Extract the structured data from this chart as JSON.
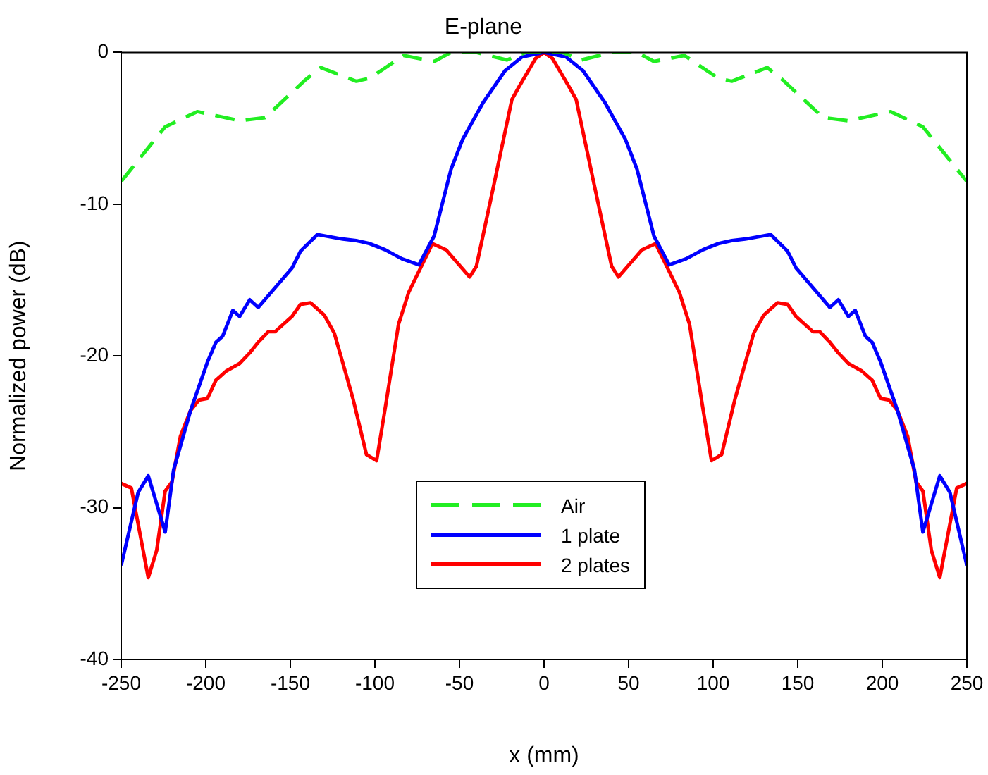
{
  "chart_data": {
    "type": "line",
    "title": "E-plane",
    "xlabel": "x (mm)",
    "ylabel": "Normalized power (dB)",
    "xlim": [
      -250,
      250
    ],
    "xticks": [
      -250,
      -200,
      -150,
      -100,
      -50,
      0,
      50,
      100,
      150,
      200,
      250
    ],
    "ylim": [
      -40,
      0
    ],
    "yticks": [
      -40,
      -30,
      -20,
      -10,
      0
    ],
    "grid": false,
    "legend": "bottom",
    "marker": "none",
    "series": [
      {
        "name": "Air",
        "color": "#22ee22",
        "line_style": "dashed",
        "x": [
          -250,
          -224,
          -205,
          -180,
          -165,
          -141,
          -132,
          -111,
          -103,
          -83,
          -65,
          -55,
          -40,
          -22,
          -11,
          0,
          11,
          22,
          40,
          55,
          65,
          83,
          103,
          111,
          132,
          141,
          165,
          180,
          205,
          224,
          250
        ],
        "values": [
          -8.5,
          -4.9,
          -3.9,
          -4.5,
          -4.3,
          -1.8,
          -1.0,
          -1.9,
          -1.7,
          -0.2,
          -0.6,
          0,
          0,
          -0.5,
          0,
          0,
          0,
          -0.5,
          0,
          0,
          -0.6,
          -0.2,
          -1.7,
          -1.9,
          -1.0,
          -1.8,
          -4.3,
          -4.5,
          -3.9,
          -4.9,
          -8.5
        ]
      },
      {
        "name": "1 plate",
        "color": "#0000ff",
        "line_style": "solid",
        "x": [
          -250,
          -240,
          -234,
          -224,
          -219,
          -209,
          -199,
          -194,
          -190,
          -184,
          -180,
          -174,
          -169,
          -149,
          -144,
          -134,
          -119,
          -111,
          -103,
          -94,
          -84,
          -74,
          -65,
          -55,
          -48,
          -36,
          -23,
          -13,
          0,
          13,
          23,
          36,
          48,
          55,
          65,
          74,
          84,
          94,
          103,
          111,
          119,
          134,
          144,
          149,
          169,
          174,
          180,
          184,
          190,
          194,
          199,
          209,
          219,
          224,
          234,
          240,
          250
        ],
        "values": [
          -33.8,
          -29,
          -27.9,
          -31.6,
          -27.5,
          -23.6,
          -20.4,
          -19.1,
          -18.7,
          -17,
          -17.4,
          -16.3,
          -16.8,
          -14.2,
          -13.1,
          -12,
          -12.3,
          -12.4,
          -12.6,
          -13,
          -13.6,
          -14,
          -12.1,
          -7.7,
          -5.7,
          -3.3,
          -1.2,
          -0.3,
          0,
          -0.3,
          -1.2,
          -3.3,
          -5.7,
          -7.7,
          -12.1,
          -14,
          -13.6,
          -13,
          -12.6,
          -12.4,
          -12.3,
          -12,
          -13.1,
          -14.2,
          -16.8,
          -16.3,
          -17.4,
          -17,
          -18.7,
          -19.1,
          -20.4,
          -23.6,
          -27.5,
          -31.6,
          -27.9,
          -29,
          -33.8
        ]
      },
      {
        "name": "2 plates",
        "color": "#ff0000",
        "line_style": "solid",
        "x": [
          -250,
          -244,
          -234,
          -229,
          -224,
          -220,
          -215,
          -209,
          -204,
          -199,
          -194,
          -188,
          -180,
          -174,
          -169,
          -163,
          -159,
          -149,
          -144,
          -138,
          -130,
          -124,
          -113,
          -105,
          -99,
          -94,
          -86,
          -80,
          -66,
          -58,
          -44,
          -40,
          -30,
          -19,
          -15,
          -5,
          0,
          5,
          15,
          19,
          30,
          40,
          44,
          58,
          66,
          80,
          86,
          94,
          99,
          105,
          113,
          124,
          130,
          138,
          144,
          149,
          159,
          163,
          169,
          174,
          180,
          188,
          194,
          199,
          204,
          209,
          215,
          220,
          224,
          229,
          234,
          244,
          250
        ],
        "values": [
          -28.4,
          -28.7,
          -34.6,
          -32.8,
          -28.9,
          -28.3,
          -25.3,
          -23.6,
          -22.9,
          -22.8,
          -21.6,
          -21,
          -20.5,
          -19.8,
          -19.1,
          -18.4,
          -18.4,
          -17.4,
          -16.6,
          -16.5,
          -17.3,
          -18.5,
          -22.8,
          -26.5,
          -26.9,
          -23.5,
          -17.9,
          -15.8,
          -12.6,
          -13,
          -14.8,
          -14.1,
          -8.9,
          -3.1,
          -2.3,
          -0.4,
          0,
          -0.4,
          -2.3,
          -3.1,
          -8.9,
          -14.1,
          -14.8,
          -13,
          -12.6,
          -15.8,
          -17.9,
          -23.5,
          -26.9,
          -26.5,
          -22.8,
          -18.5,
          -17.3,
          -16.5,
          -16.6,
          -17.4,
          -18.4,
          -18.4,
          -19.1,
          -19.8,
          -20.5,
          -21,
          -21.6,
          -22.8,
          -22.9,
          -23.6,
          -25.3,
          -28.3,
          -28.9,
          -32.8,
          -34.6,
          -28.7,
          -28.4
        ]
      }
    ]
  }
}
